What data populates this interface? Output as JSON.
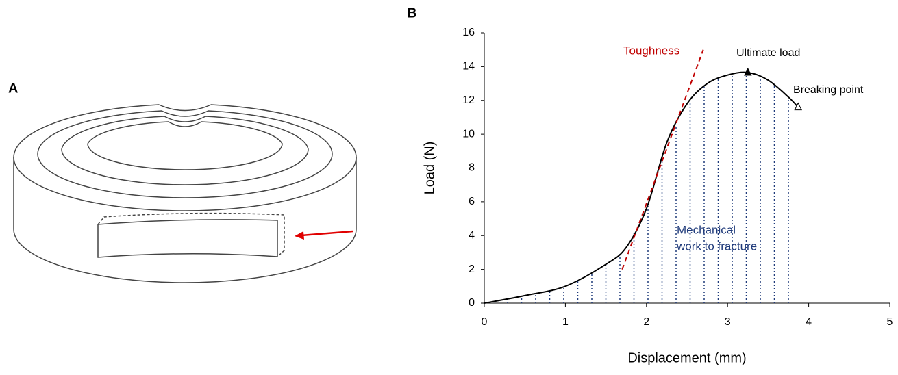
{
  "panel_labels": [
    "A",
    "B"
  ],
  "chart_data": {
    "type": "line",
    "x_label": "Displacement (mm)",
    "y_label": "Load (N)",
    "x": [
      0,
      0.5,
      1,
      1.5,
      1.75,
      2,
      2.25,
      2.5,
      2.75,
      3,
      3.25,
      3.5,
      3.75,
      3.87
    ],
    "series": [
      {
        "color": "#000000",
        "values": [
          0,
          0.45,
          1.0,
          2.3,
          3.3,
          5.6,
          9.5,
          11.8,
          13.0,
          13.5,
          13.65,
          13.2,
          12.2,
          11.6
        ]
      }
    ],
    "xlim": [
      0,
      5
    ],
    "xticks": [
      0,
      1,
      2,
      3,
      4,
      5
    ],
    "ylim": [
      0,
      16
    ],
    "yticks": [
      0,
      2,
      4,
      6,
      8,
      10,
      12,
      14,
      16
    ],
    "grid": false,
    "tangent": {
      "label": "Toughness",
      "x": [
        1.7,
        2.7
      ],
      "y": [
        2.0,
        15.0
      ],
      "color": "#c00000"
    },
    "markers": [
      {
        "label": "Ultimate load",
        "x": 3.25,
        "y": 13.65,
        "filled": true
      },
      {
        "label": "Breaking point",
        "x": 3.87,
        "y": 11.6,
        "filled": false
      }
    ],
    "area_label": [
      "Mechanical",
      "work to fracture"
    ],
    "area_color": "#1f3a7a"
  }
}
